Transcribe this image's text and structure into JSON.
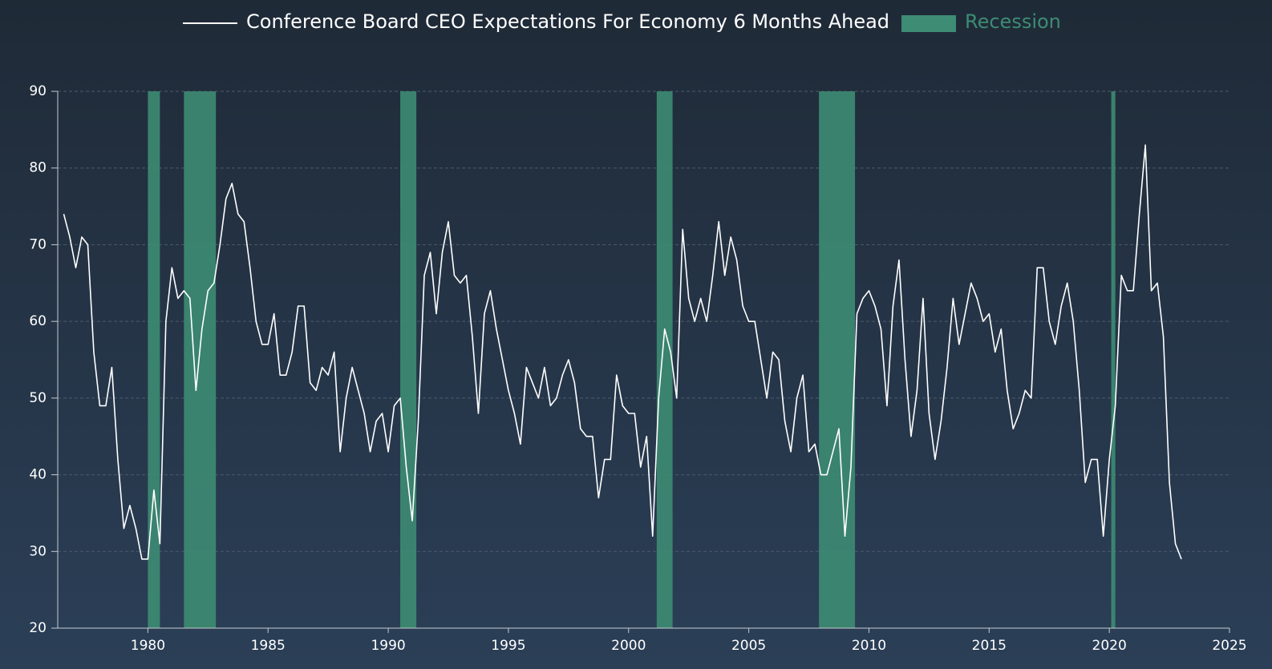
{
  "chart_data": {
    "type": "line",
    "x": [
      1976.5,
      1976.75,
      1977,
      1977.25,
      1977.5,
      1977.75,
      1978,
      1978.25,
      1978.5,
      1978.75,
      1979,
      1979.25,
      1979.5,
      1979.75,
      1980,
      1980.25,
      1980.5,
      1980.75,
      1981,
      1981.25,
      1981.5,
      1981.75,
      1982,
      1982.25,
      1982.5,
      1982.75,
      1983,
      1983.25,
      1983.5,
      1983.75,
      1984,
      1984.25,
      1984.5,
      1984.75,
      1985,
      1985.25,
      1985.5,
      1985.75,
      1986,
      1986.25,
      1986.5,
      1986.75,
      1987,
      1987.25,
      1987.5,
      1987.75,
      1988,
      1988.25,
      1988.5,
      1988.75,
      1989,
      1989.25,
      1989.5,
      1989.75,
      1990,
      1990.25,
      1990.5,
      1990.75,
      1991,
      1991.25,
      1991.5,
      1991.75,
      1992,
      1992.25,
      1992.5,
      1992.75,
      1993,
      1993.25,
      1993.5,
      1993.75,
      1994,
      1994.25,
      1994.5,
      1994.75,
      1995,
      1995.25,
      1995.5,
      1995.75,
      1996,
      1996.25,
      1996.5,
      1996.75,
      1997,
      1997.25,
      1997.5,
      1997.75,
      1998,
      1998.25,
      1998.5,
      1998.75,
      1999,
      1999.25,
      1999.5,
      1999.75,
      2000,
      2000.25,
      2000.5,
      2000.75,
      2001,
      2001.25,
      2001.5,
      2001.75,
      2002,
      2002.25,
      2002.5,
      2002.75,
      2003,
      2003.25,
      2003.5,
      2003.75,
      2004,
      2004.25,
      2004.5,
      2004.75,
      2005,
      2005.25,
      2005.5,
      2005.75,
      2006,
      2006.25,
      2006.5,
      2006.75,
      2007,
      2007.25,
      2007.5,
      2007.75,
      2008,
      2008.25,
      2008.5,
      2008.75,
      2009,
      2009.25,
      2009.5,
      2009.75,
      2010,
      2010.25,
      2010.5,
      2010.75,
      2011,
      2011.25,
      2011.5,
      2011.75,
      2012,
      2012.25,
      2012.5,
      2012.75,
      2013,
      2013.25,
      2013.5,
      2013.75,
      2014,
      2014.25,
      2014.5,
      2014.75,
      2015,
      2015.25,
      2015.5,
      2015.75,
      2016,
      2016.25,
      2016.5,
      2016.75,
      2017,
      2017.25,
      2017.5,
      2017.75,
      2018,
      2018.25,
      2018.5,
      2018.75,
      2019,
      2019.25,
      2019.5,
      2019.75,
      2020,
      2020.25,
      2020.5,
      2020.75,
      2021,
      2021.25,
      2021.5,
      2021.75,
      2022,
      2022.25,
      2022.5,
      2022.75,
      2023
    ],
    "series": [
      {
        "name": "Conference Board CEO Expectations For Economy 6 Months Ahead",
        "color": "#ffffff",
        "values": [
          74,
          71,
          67,
          71,
          70,
          56,
          49,
          49,
          54,
          42,
          33,
          36,
          33,
          29,
          29,
          38,
          31,
          60,
          67,
          63,
          64,
          63,
          51,
          59,
          64,
          65,
          70,
          76,
          78,
          74,
          73,
          67,
          60,
          57,
          57,
          61,
          53,
          53,
          56,
          62,
          62,
          52,
          51,
          54,
          53,
          56,
          43,
          50,
          54,
          51,
          48,
          43,
          47,
          48,
          43,
          49,
          50,
          41,
          34,
          47,
          66,
          69,
          61,
          69,
          73,
          66,
          65,
          66,
          58,
          48,
          61,
          64,
          59,
          55,
          51,
          48,
          44,
          54,
          52,
          50,
          54,
          49,
          50,
          53,
          55,
          52,
          46,
          45,
          45,
          37,
          42,
          42,
          53,
          49,
          48,
          48,
          41,
          45,
          32,
          50,
          59,
          56,
          50,
          72,
          63,
          60,
          63,
          60,
          66,
          73,
          66,
          71,
          68,
          62,
          60,
          60,
          55,
          50,
          56,
          55,
          47,
          43,
          50,
          53,
          43,
          44,
          40,
          40,
          43,
          46,
          32,
          41,
          61,
          63,
          64,
          62,
          59,
          49,
          62,
          68,
          55,
          45,
          51,
          63,
          48,
          42,
          47,
          54,
          63,
          57,
          61,
          65,
          63,
          60,
          61,
          56,
          59,
          51,
          46,
          48,
          51,
          50,
          67,
          67,
          60,
          57,
          62,
          65,
          60,
          51,
          39,
          42,
          42,
          32,
          42,
          49,
          66,
          64,
          64,
          74,
          83,
          64,
          65,
          58,
          39,
          31,
          29
        ]
      },
      {
        "name": "Recession",
        "color": "#3d8c73",
        "ranges": [
          [
            1980.0,
            1980.5
          ],
          [
            1981.5,
            1982.83
          ],
          [
            1990.5,
            1991.17
          ],
          [
            2001.17,
            2001.83
          ],
          [
            2007.92,
            2009.42
          ],
          [
            2020.08,
            2020.25
          ]
        ]
      }
    ],
    "xlim": [
      1976.25,
      2025
    ],
    "xticks": [
      1980,
      1985,
      1990,
      1995,
      2000,
      2005,
      2010,
      2015,
      2020,
      2025
    ],
    "ylim": [
      20,
      90
    ],
    "yticks": [
      20,
      30,
      40,
      50,
      60,
      70,
      80,
      90
    ],
    "grid": true
  }
}
